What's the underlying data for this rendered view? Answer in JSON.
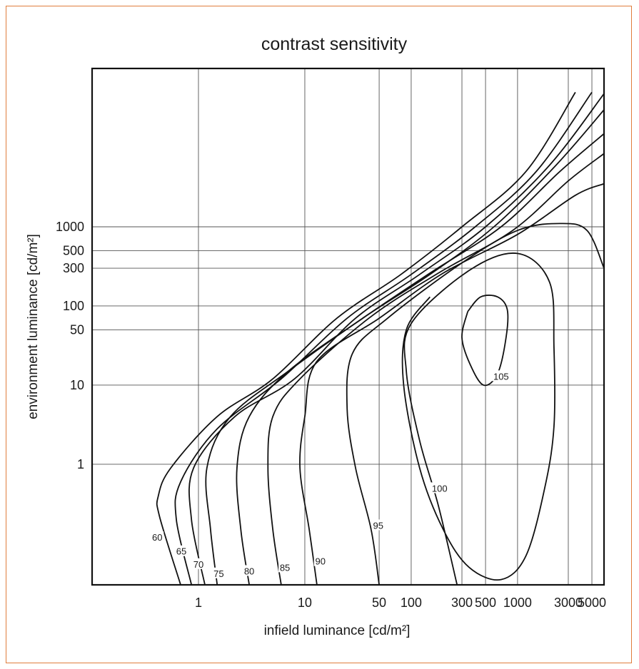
{
  "chart_data": {
    "type": "line",
    "title": "contrast sensitivity",
    "xlabel": "infield luminance [cd/m²]",
    "ylabel": "environment luminance [cd/m²]",
    "x_scale": "log",
    "y_scale": "log",
    "xlim": [
      0.1,
      6500
    ],
    "ylim": [
      0.03,
      100000
    ],
    "grid": true,
    "x_ticks": [
      {
        "value": 1,
        "label": "1"
      },
      {
        "value": 10,
        "label": "10"
      },
      {
        "value": 50,
        "label": "50"
      },
      {
        "value": 100,
        "label": "100"
      },
      {
        "value": 300,
        "label": "300"
      },
      {
        "value": 500,
        "label": "500"
      },
      {
        "value": 1000,
        "label": "1000"
      },
      {
        "value": 3000,
        "label": "3000"
      },
      {
        "value": 5000,
        "label": "5000"
      }
    ],
    "y_ticks": [
      {
        "value": 1,
        "label": "1"
      },
      {
        "value": 10,
        "label": "10"
      },
      {
        "value": 50,
        "label": "50"
      },
      {
        "value": 100,
        "label": "100"
      },
      {
        "value": 300,
        "label": "300"
      },
      {
        "value": 500,
        "label": "500"
      },
      {
        "value": 1000,
        "label": "1000"
      }
    ],
    "series": [
      {
        "name": "60",
        "label_at": [
          0.41,
          0.12
        ],
        "points": [
          [
            0.68,
            0.03
          ],
          [
            0.43,
            0.22
          ],
          [
            0.42,
            0.4
          ],
          [
            0.55,
            0.9
          ],
          [
            1.5,
            4
          ],
          [
            5,
            12
          ],
          [
            20,
            70
          ],
          [
            80,
            250
          ],
          [
            300,
            1000
          ],
          [
            1200,
            5000
          ],
          [
            3500,
            50000
          ]
        ]
      },
      {
        "name": "65",
        "label_at": [
          0.69,
          0.08
        ],
        "points": [
          [
            0.86,
            0.03
          ],
          [
            0.62,
            0.2
          ],
          [
            0.68,
            0.6
          ],
          [
            1.5,
            2.8
          ],
          [
            6,
            12
          ],
          [
            25,
            70
          ],
          [
            100,
            250
          ],
          [
            400,
            1000
          ],
          [
            1500,
            5000
          ],
          [
            5000,
            50000
          ]
        ]
      },
      {
        "name": "70",
        "label_at": [
          1.0,
          0.055
        ],
        "points": [
          [
            1.15,
            0.03
          ],
          [
            0.86,
            0.2
          ],
          [
            0.9,
            0.9
          ],
          [
            2.2,
            4
          ],
          [
            8,
            12
          ],
          [
            30,
            70
          ],
          [
            120,
            250
          ],
          [
            500,
            1000
          ],
          [
            2000,
            6000
          ],
          [
            6500,
            48000
          ]
        ]
      },
      {
        "name": "75",
        "label_at": [
          1.55,
          0.042
        ],
        "points": [
          [
            1.5,
            0.03
          ],
          [
            1.3,
            0.15
          ],
          [
            1.2,
            0.9
          ],
          [
            2,
            4
          ],
          [
            7,
            15
          ],
          [
            35,
            70
          ],
          [
            150,
            250
          ],
          [
            600,
            1000
          ],
          [
            2300,
            6000
          ],
          [
            6500,
            30000
          ]
        ]
      },
      {
        "name": "80",
        "label_at": [
          3.0,
          0.045
        ],
        "points": [
          [
            3,
            0.03
          ],
          [
            2.5,
            0.15
          ],
          [
            2.3,
            0.9
          ],
          [
            3,
            4
          ],
          [
            7,
            15
          ],
          [
            35,
            70
          ],
          [
            150,
            260
          ],
          [
            700,
            1000
          ],
          [
            2500,
            5000
          ],
          [
            6500,
            15000
          ]
        ]
      },
      {
        "name": "85",
        "label_at": [
          6.5,
          0.05
        ],
        "points": [
          [
            6,
            0.03
          ],
          [
            5,
            0.15
          ],
          [
            4.5,
            0.9
          ],
          [
            5,
            4
          ],
          [
            9,
            12
          ],
          [
            40,
            70
          ],
          [
            180,
            260
          ],
          [
            900,
            900
          ],
          [
            3000,
            3800
          ],
          [
            6500,
            8400
          ]
        ]
      },
      {
        "name": "90",
        "label_at": [
          14,
          0.06
        ],
        "points": [
          [
            13,
            0.03
          ],
          [
            11,
            0.15
          ],
          [
            9,
            0.9
          ],
          [
            10,
            4
          ],
          [
            13,
            20
          ],
          [
            50,
            70
          ],
          [
            200,
            260
          ],
          [
            1000,
            800
          ],
          [
            3500,
            2500
          ],
          [
            6500,
            3500
          ]
        ]
      },
      {
        "name": "95",
        "label_at": [
          49,
          0.17
        ],
        "points": [
          [
            50,
            0.03
          ],
          [
            42,
            0.15
          ],
          [
            30,
            0.9
          ],
          [
            25,
            5
          ],
          [
            28,
            25
          ],
          [
            60,
            70
          ],
          [
            300,
            350
          ],
          [
            1000,
            900
          ],
          [
            2500,
            1100
          ],
          [
            4500,
            900
          ],
          [
            6500,
            300
          ]
        ]
      },
      {
        "name": "100",
        "label_at": [
          185,
          0.5
        ],
        "points": [
          [
            270,
            0.03
          ],
          [
            180,
            0.3
          ],
          [
            120,
            2
          ],
          [
            90,
            15
          ],
          [
            100,
            60
          ],
          [
            350,
            280
          ],
          [
            1000,
            460
          ],
          [
            2000,
            200
          ],
          [
            2200,
            30
          ],
          [
            2200,
            3
          ],
          [
            1800,
            0.5
          ],
          [
            1200,
            0.07
          ],
          [
            700,
            0.035
          ],
          [
            350,
            0.05
          ],
          [
            200,
            0.15
          ],
          [
            120,
            0.9
          ],
          [
            85,
            10
          ],
          [
            90,
            50
          ],
          [
            150,
            130
          ]
        ]
      },
      {
        "name": "105",
        "label_at": [
          700,
          13
        ],
        "points": [
          [
            340,
            85
          ],
          [
            450,
            130
          ],
          [
            650,
            130
          ],
          [
            800,
            90
          ],
          [
            780,
            40
          ],
          [
            650,
            14
          ],
          [
            480,
            10
          ],
          [
            360,
            18
          ],
          [
            300,
            40
          ],
          [
            340,
            85
          ]
        ]
      }
    ]
  }
}
